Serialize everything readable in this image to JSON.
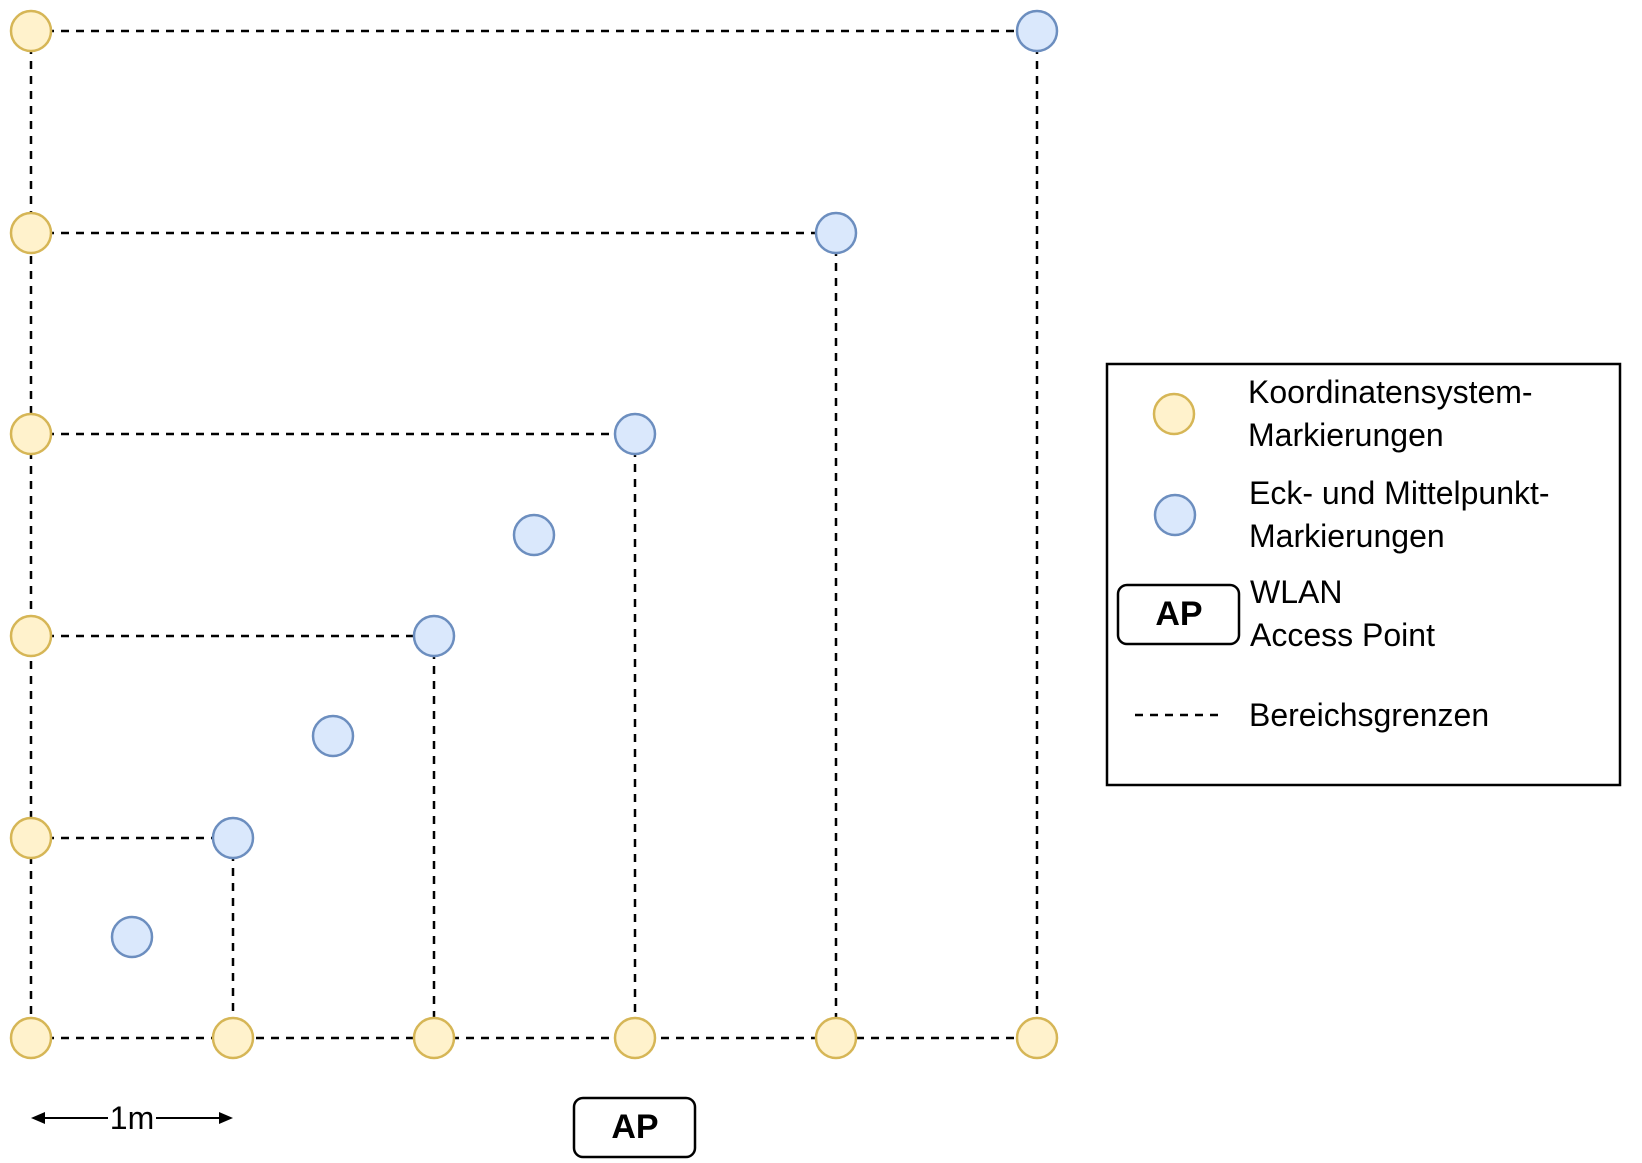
{
  "colors": {
    "yellow_fill": "#FFF2CC",
    "yellow_stroke": "#D6B656",
    "blue_fill": "#DAE8FC",
    "blue_stroke": "#6C8EBF",
    "line": "#000000"
  },
  "scale": {
    "label": "1m"
  },
  "access_point": {
    "label": "AP"
  },
  "legend": {
    "coord_markers": {
      "line1": "Koordinatensystem-",
      "line2": "Markierungen"
    },
    "corner_markers": {
      "line1": "Eck- und Mittelpunkt-",
      "line2": "Markierungen"
    },
    "access_point": {
      "box_label": "AP",
      "line1": "WLAN",
      "line2": "Access Point"
    },
    "boundaries": {
      "label": "Bereichsgrenzen"
    }
  }
}
